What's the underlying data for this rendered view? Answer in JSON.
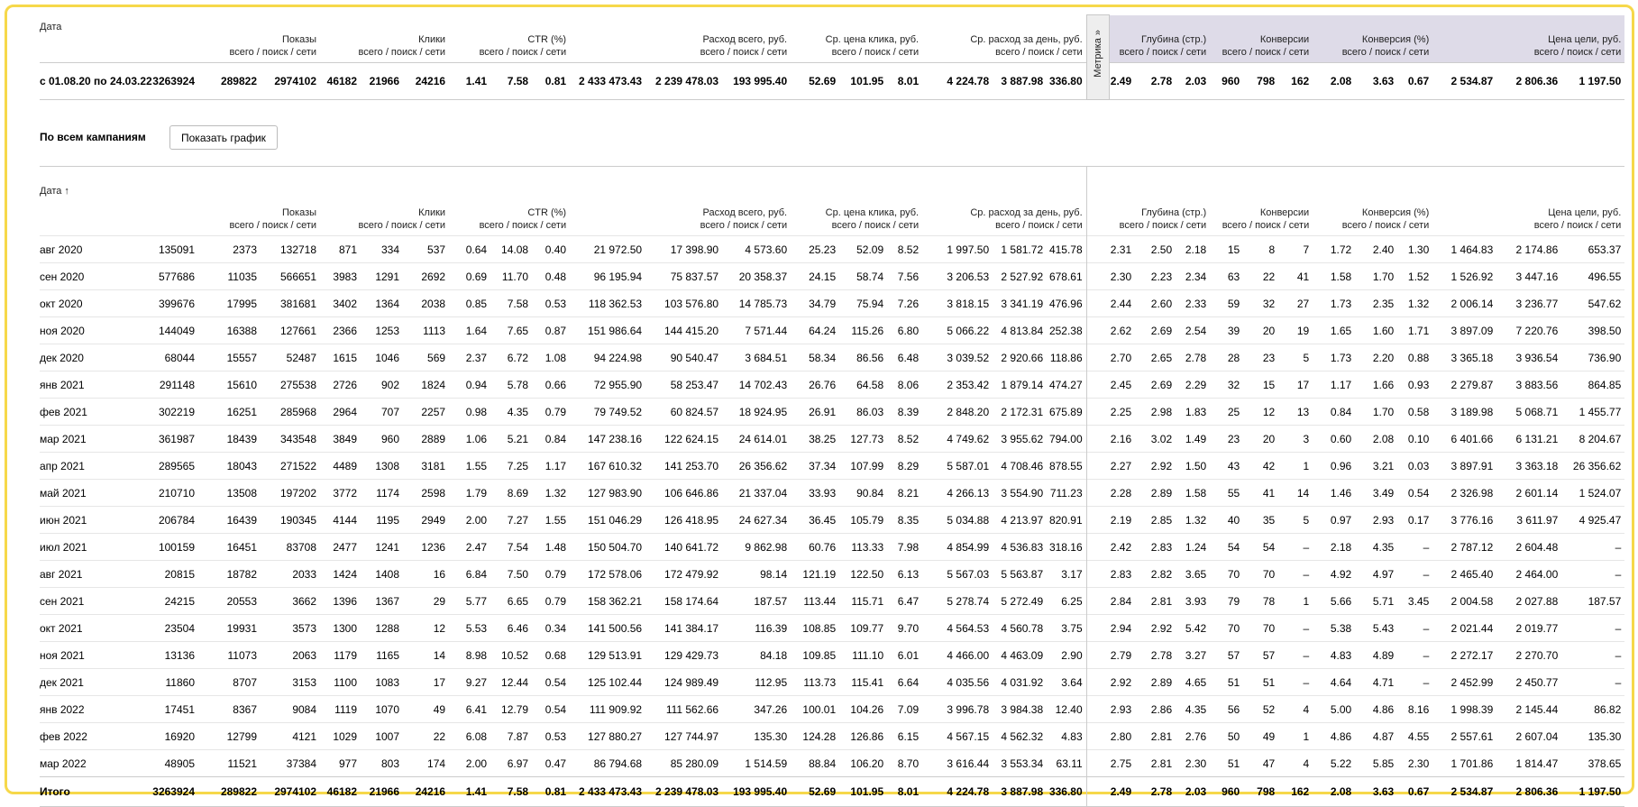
{
  "summary": {
    "headers": {
      "date": "Дата",
      "groups": [
        {
          "title": "Показы",
          "sub": "всего / поиск / сети"
        },
        {
          "title": "Клики",
          "sub": "всего / поиск / сети"
        },
        {
          "title": "CTR (%)",
          "sub": "всего / поиск / сети"
        },
        {
          "title": "Расход всего, руб.",
          "sub": "всего / поиск / сети"
        },
        {
          "title": "Ср. цена клика, руб.",
          "sub": "всего / поиск / сети"
        },
        {
          "title": "Ср. расход за день, руб.",
          "sub": "всего / поиск / сети"
        },
        {
          "title": "Глубина (стр.)",
          "sub": "всего / поиск / сети"
        },
        {
          "title": "Конверсии",
          "sub": "всего / поиск / сети"
        },
        {
          "title": "Конверсия (%)",
          "sub": "всего / поиск / сети"
        },
        {
          "title": "Цена цели, руб.",
          "sub": "всего / поиск / сети"
        }
      ]
    },
    "metrika": "Метрика »",
    "row": [
      "с 01.08.20 по 24.03.22",
      "3263924",
      "289822",
      "2974102",
      "46182",
      "21966",
      "24216",
      "1.41",
      "7.58",
      "0.81",
      "2 433 473.43",
      "2 239 478.03",
      "193 995.40",
      "52.69",
      "101.95",
      "8.01",
      "4 224.78",
      "3 887.98",
      "336.80",
      "2.49",
      "2.78",
      "2.03",
      "960",
      "798",
      "162",
      "2.08",
      "3.63",
      "0.67",
      "2 534.87",
      "2 806.36",
      "1 197.50"
    ]
  },
  "section": {
    "title": "По всем кампаниям",
    "button": "Показать график"
  },
  "table": {
    "headers": {
      "date": "Дата ↑",
      "groups": [
        {
          "title": "Показы",
          "sub": "всего / поиск / сети"
        },
        {
          "title": "Клики",
          "sub": "всего / поиск / сети"
        },
        {
          "title": "CTR (%)",
          "sub": "всего / поиск / сети"
        },
        {
          "title": "Расход всего, руб.",
          "sub": "всего / поиск / сети"
        },
        {
          "title": "Ср. цена клика, руб.",
          "sub": "всего / поиск / сети"
        },
        {
          "title": "Ср. расход за день, руб.",
          "sub": "всего / поиск / сети"
        },
        {
          "title": "Глубина (стр.)",
          "sub": "всего / поиск / сети"
        },
        {
          "title": "Конверсии",
          "sub": "всего / поиск / сети"
        },
        {
          "title": "Конверсия (%)",
          "sub": "всего / поиск / сети"
        },
        {
          "title": "Цена цели, руб.",
          "sub": "всего / поиск / сети"
        }
      ]
    },
    "rows": [
      [
        "авг 2020",
        "135091",
        "2373",
        "132718",
        "871",
        "334",
        "537",
        "0.64",
        "14.08",
        "0.40",
        "21 972.50",
        "17 398.90",
        "4 573.60",
        "25.23",
        "52.09",
        "8.52",
        "1 997.50",
        "1 581.72",
        "415.78",
        "2.31",
        "2.50",
        "2.18",
        "15",
        "8",
        "7",
        "1.72",
        "2.40",
        "1.30",
        "1 464.83",
        "2 174.86",
        "653.37"
      ],
      [
        "сен 2020",
        "577686",
        "11035",
        "566651",
        "3983",
        "1291",
        "2692",
        "0.69",
        "11.70",
        "0.48",
        "96 195.94",
        "75 837.57",
        "20 358.37",
        "24.15",
        "58.74",
        "7.56",
        "3 206.53",
        "2 527.92",
        "678.61",
        "2.30",
        "2.23",
        "2.34",
        "63",
        "22",
        "41",
        "1.58",
        "1.70",
        "1.52",
        "1 526.92",
        "3 447.16",
        "496.55"
      ],
      [
        "окт 2020",
        "399676",
        "17995",
        "381681",
        "3402",
        "1364",
        "2038",
        "0.85",
        "7.58",
        "0.53",
        "118 362.53",
        "103 576.80",
        "14 785.73",
        "34.79",
        "75.94",
        "7.26",
        "3 818.15",
        "3 341.19",
        "476.96",
        "2.44",
        "2.60",
        "2.33",
        "59",
        "32",
        "27",
        "1.73",
        "2.35",
        "1.32",
        "2 006.14",
        "3 236.77",
        "547.62"
      ],
      [
        "ноя 2020",
        "144049",
        "16388",
        "127661",
        "2366",
        "1253",
        "1113",
        "1.64",
        "7.65",
        "0.87",
        "151 986.64",
        "144 415.20",
        "7 571.44",
        "64.24",
        "115.26",
        "6.80",
        "5 066.22",
        "4 813.84",
        "252.38",
        "2.62",
        "2.69",
        "2.54",
        "39",
        "20",
        "19",
        "1.65",
        "1.60",
        "1.71",
        "3 897.09",
        "7 220.76",
        "398.50"
      ],
      [
        "дек 2020",
        "68044",
        "15557",
        "52487",
        "1615",
        "1046",
        "569",
        "2.37",
        "6.72",
        "1.08",
        "94 224.98",
        "90 540.47",
        "3 684.51",
        "58.34",
        "86.56",
        "6.48",
        "3 039.52",
        "2 920.66",
        "118.86",
        "2.70",
        "2.65",
        "2.78",
        "28",
        "23",
        "5",
        "1.73",
        "2.20",
        "0.88",
        "3 365.18",
        "3 936.54",
        "736.90"
      ],
      [
        "янв 2021",
        "291148",
        "15610",
        "275538",
        "2726",
        "902",
        "1824",
        "0.94",
        "5.78",
        "0.66",
        "72 955.90",
        "58 253.47",
        "14 702.43",
        "26.76",
        "64.58",
        "8.06",
        "2 353.42",
        "1 879.14",
        "474.27",
        "2.45",
        "2.69",
        "2.29",
        "32",
        "15",
        "17",
        "1.17",
        "1.66",
        "0.93",
        "2 279.87",
        "3 883.56",
        "864.85"
      ],
      [
        "фев 2021",
        "302219",
        "16251",
        "285968",
        "2964",
        "707",
        "2257",
        "0.98",
        "4.35",
        "0.79",
        "79 749.52",
        "60 824.57",
        "18 924.95",
        "26.91",
        "86.03",
        "8.39",
        "2 848.20",
        "2 172.31",
        "675.89",
        "2.25",
        "2.98",
        "1.83",
        "25",
        "12",
        "13",
        "0.84",
        "1.70",
        "0.58",
        "3 189.98",
        "5 068.71",
        "1 455.77"
      ],
      [
        "мар 2021",
        "361987",
        "18439",
        "343548",
        "3849",
        "960",
        "2889",
        "1.06",
        "5.21",
        "0.84",
        "147 238.16",
        "122 624.15",
        "24 614.01",
        "38.25",
        "127.73",
        "8.52",
        "4 749.62",
        "3 955.62",
        "794.00",
        "2.16",
        "3.02",
        "1.49",
        "23",
        "20",
        "3",
        "0.60",
        "2.08",
        "0.10",
        "6 401.66",
        "6 131.21",
        "8 204.67"
      ],
      [
        "апр 2021",
        "289565",
        "18043",
        "271522",
        "4489",
        "1308",
        "3181",
        "1.55",
        "7.25",
        "1.17",
        "167 610.32",
        "141 253.70",
        "26 356.62",
        "37.34",
        "107.99",
        "8.29",
        "5 587.01",
        "4 708.46",
        "878.55",
        "2.27",
        "2.92",
        "1.50",
        "43",
        "42",
        "1",
        "0.96",
        "3.21",
        "0.03",
        "3 897.91",
        "3 363.18",
        "26 356.62"
      ],
      [
        "май 2021",
        "210710",
        "13508",
        "197202",
        "3772",
        "1174",
        "2598",
        "1.79",
        "8.69",
        "1.32",
        "127 983.90",
        "106 646.86",
        "21 337.04",
        "33.93",
        "90.84",
        "8.21",
        "4 266.13",
        "3 554.90",
        "711.23",
        "2.28",
        "2.89",
        "1.58",
        "55",
        "41",
        "14",
        "1.46",
        "3.49",
        "0.54",
        "2 326.98",
        "2 601.14",
        "1 524.07"
      ],
      [
        "июн 2021",
        "206784",
        "16439",
        "190345",
        "4144",
        "1195",
        "2949",
        "2.00",
        "7.27",
        "1.55",
        "151 046.29",
        "126 418.95",
        "24 627.34",
        "36.45",
        "105.79",
        "8.35",
        "5 034.88",
        "4 213.97",
        "820.91",
        "2.19",
        "2.85",
        "1.32",
        "40",
        "35",
        "5",
        "0.97",
        "2.93",
        "0.17",
        "3 776.16",
        "3 611.97",
        "4 925.47"
      ],
      [
        "июл 2021",
        "100159",
        "16451",
        "83708",
        "2477",
        "1241",
        "1236",
        "2.47",
        "7.54",
        "1.48",
        "150 504.70",
        "140 641.72",
        "9 862.98",
        "60.76",
        "113.33",
        "7.98",
        "4 854.99",
        "4 536.83",
        "318.16",
        "2.42",
        "2.83",
        "1.24",
        "54",
        "54",
        "–",
        "2.18",
        "4.35",
        "–",
        "2 787.12",
        "2 604.48",
        "–"
      ],
      [
        "авг 2021",
        "20815",
        "18782",
        "2033",
        "1424",
        "1408",
        "16",
        "6.84",
        "7.50",
        "0.79",
        "172 578.06",
        "172 479.92",
        "98.14",
        "121.19",
        "122.50",
        "6.13",
        "5 567.03",
        "5 563.87",
        "3.17",
        "2.83",
        "2.82",
        "3.65",
        "70",
        "70",
        "–",
        "4.92",
        "4.97",
        "–",
        "2 465.40",
        "2 464.00",
        "–"
      ],
      [
        "сен 2021",
        "24215",
        "20553",
        "3662",
        "1396",
        "1367",
        "29",
        "5.77",
        "6.65",
        "0.79",
        "158 362.21",
        "158 174.64",
        "187.57",
        "113.44",
        "115.71",
        "6.47",
        "5 278.74",
        "5 272.49",
        "6.25",
        "2.84",
        "2.81",
        "3.93",
        "79",
        "78",
        "1",
        "5.66",
        "5.71",
        "3.45",
        "2 004.58",
        "2 027.88",
        "187.57"
      ],
      [
        "окт 2021",
        "23504",
        "19931",
        "3573",
        "1300",
        "1288",
        "12",
        "5.53",
        "6.46",
        "0.34",
        "141 500.56",
        "141 384.17",
        "116.39",
        "108.85",
        "109.77",
        "9.70",
        "4 564.53",
        "4 560.78",
        "3.75",
        "2.94",
        "2.92",
        "5.42",
        "70",
        "70",
        "–",
        "5.38",
        "5.43",
        "–",
        "2 021.44",
        "2 019.77",
        "–"
      ],
      [
        "ноя 2021",
        "13136",
        "11073",
        "2063",
        "1179",
        "1165",
        "14",
        "8.98",
        "10.52",
        "0.68",
        "129 513.91",
        "129 429.73",
        "84.18",
        "109.85",
        "111.10",
        "6.01",
        "4 466.00",
        "4 463.09",
        "2.90",
        "2.79",
        "2.78",
        "3.27",
        "57",
        "57",
        "–",
        "4.83",
        "4.89",
        "–",
        "2 272.17",
        "2 270.70",
        "–"
      ],
      [
        "дек 2021",
        "11860",
        "8707",
        "3153",
        "1100",
        "1083",
        "17",
        "9.27",
        "12.44",
        "0.54",
        "125 102.44",
        "124 989.49",
        "112.95",
        "113.73",
        "115.41",
        "6.64",
        "4 035.56",
        "4 031.92",
        "3.64",
        "2.92",
        "2.89",
        "4.65",
        "51",
        "51",
        "–",
        "4.64",
        "4.71",
        "–",
        "2 452.99",
        "2 450.77",
        "–"
      ],
      [
        "янв 2022",
        "17451",
        "8367",
        "9084",
        "1119",
        "1070",
        "49",
        "6.41",
        "12.79",
        "0.54",
        "111 909.92",
        "111 562.66",
        "347.26",
        "100.01",
        "104.26",
        "7.09",
        "3 996.78",
        "3 984.38",
        "12.40",
        "2.93",
        "2.86",
        "4.35",
        "56",
        "52",
        "4",
        "5.00",
        "4.86",
        "8.16",
        "1 998.39",
        "2 145.44",
        "86.82"
      ],
      [
        "фев 2022",
        "16920",
        "12799",
        "4121",
        "1029",
        "1007",
        "22",
        "6.08",
        "7.87",
        "0.53",
        "127 880.27",
        "127 744.97",
        "135.30",
        "124.28",
        "126.86",
        "6.15",
        "4 567.15",
        "4 562.32",
        "4.83",
        "2.80",
        "2.81",
        "2.76",
        "50",
        "49",
        "1",
        "4.86",
        "4.87",
        "4.55",
        "2 557.61",
        "2 607.04",
        "135.30"
      ],
      [
        "мар 2022",
        "48905",
        "11521",
        "37384",
        "977",
        "803",
        "174",
        "2.00",
        "6.97",
        "0.47",
        "86 794.68",
        "85 280.09",
        "1 514.59",
        "88.84",
        "106.20",
        "8.70",
        "3 616.44",
        "3 553.34",
        "63.11",
        "2.75",
        "2.81",
        "2.30",
        "51",
        "47",
        "4",
        "5.22",
        "5.85",
        "2.30",
        "1 701.86",
        "1 814.47",
        "378.65"
      ]
    ],
    "total": [
      "Итого",
      "3263924",
      "289822",
      "2974102",
      "46182",
      "21966",
      "24216",
      "1.41",
      "7.58",
      "0.81",
      "2 433 473.43",
      "2 239 478.03",
      "193 995.40",
      "52.69",
      "101.95",
      "8.01",
      "4 224.78",
      "3 887.98",
      "336.80",
      "2.49",
      "2.78",
      "2.03",
      "960",
      "798",
      "162",
      "2.08",
      "3.63",
      "0.67",
      "2 534.87",
      "2 806.36",
      "1 197.50"
    ]
  }
}
